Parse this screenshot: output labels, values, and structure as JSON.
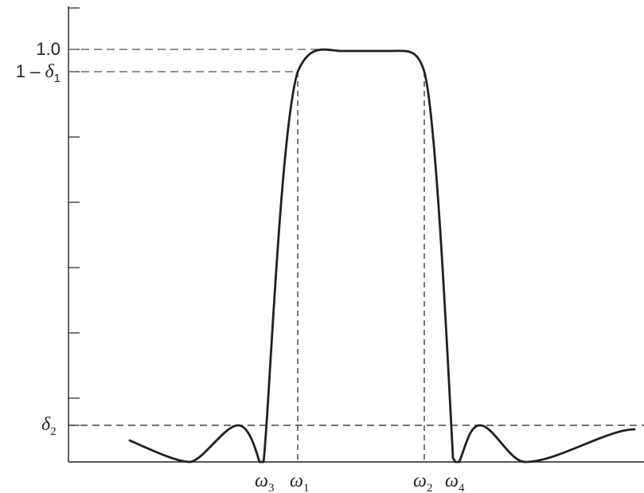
{
  "figure": {
    "y_labels": {
      "one": "1.0",
      "upper": {
        "prefix": "1 – ",
        "symbol": "δ",
        "sub": "1"
      },
      "lower": {
        "symbol": "δ",
        "sub": "2"
      }
    },
    "x_labels": [
      {
        "symbol": "ω",
        "sub": "3"
      },
      {
        "symbol": "ω",
        "sub": "1"
      },
      {
        "symbol": "ω",
        "sub": "2"
      },
      {
        "symbol": "ω",
        "sub": "4"
      }
    ]
  }
}
